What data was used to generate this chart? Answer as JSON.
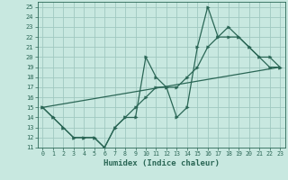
{
  "xlabel": "Humidex (Indice chaleur)",
  "xlim": [
    -0.5,
    23.5
  ],
  "ylim": [
    11,
    25.5
  ],
  "yticks": [
    11,
    12,
    13,
    14,
    15,
    16,
    17,
    18,
    19,
    20,
    21,
    22,
    23,
    24,
    25
  ],
  "xticks": [
    0,
    1,
    2,
    3,
    4,
    5,
    6,
    7,
    8,
    9,
    10,
    11,
    12,
    13,
    14,
    15,
    16,
    17,
    18,
    19,
    20,
    21,
    22,
    23
  ],
  "bg_color": "#c8e8e0",
  "grid_color": "#a0c8c0",
  "line_color": "#2a6655",
  "line1_x": [
    0,
    1,
    2,
    3,
    4,
    5,
    6,
    7,
    8,
    9,
    10,
    11,
    12,
    13,
    14,
    15,
    16,
    17,
    18,
    19,
    20,
    21,
    22,
    23
  ],
  "line1_y": [
    15,
    14,
    13,
    12,
    12,
    12,
    11,
    13,
    14,
    14,
    20,
    18,
    17,
    14,
    15,
    21,
    25,
    22,
    23,
    22,
    21,
    20,
    20,
    19
  ],
  "line2_x": [
    0,
    1,
    2,
    3,
    4,
    5,
    6,
    7,
    8,
    9,
    10,
    11,
    12,
    13,
    14,
    15,
    16,
    17,
    18,
    19,
    20,
    21,
    22,
    23
  ],
  "line2_y": [
    15,
    14,
    13,
    12,
    12,
    12,
    11,
    13,
    14,
    15,
    16,
    17,
    17,
    17,
    18,
    19,
    21,
    22,
    22,
    22,
    21,
    20,
    19,
    19
  ],
  "line3_x": [
    0,
    23
  ],
  "line3_y": [
    15,
    19
  ]
}
